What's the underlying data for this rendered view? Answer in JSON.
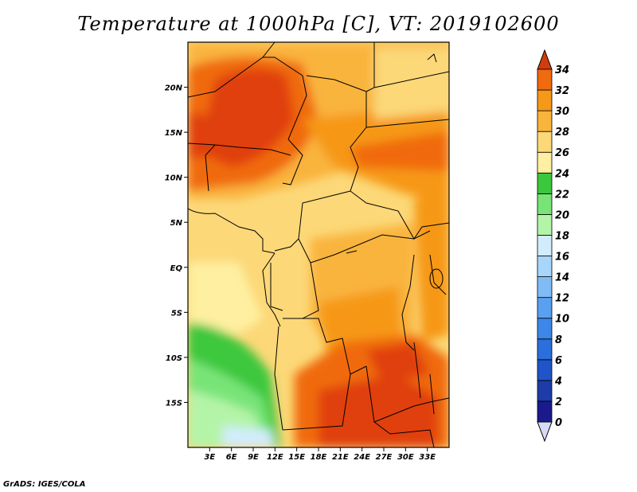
{
  "title": "Temperature at 1000hPa [C], VT: 2019102600",
  "credit": "GrADS: IGES/COLA",
  "map": {
    "lon_range": [
      0,
      36
    ],
    "lat_range": [
      -20,
      25
    ],
    "x_ticks": [
      {
        "value": 3,
        "label": "3E"
      },
      {
        "value": 6,
        "label": "6E"
      },
      {
        "value": 9,
        "label": "9E"
      },
      {
        "value": 12,
        "label": "12E"
      },
      {
        "value": 15,
        "label": "15E"
      },
      {
        "value": 18,
        "label": "18E"
      },
      {
        "value": 21,
        "label": "21E"
      },
      {
        "value": 24,
        "label": "24E"
      },
      {
        "value": 27,
        "label": "27E"
      },
      {
        "value": 30,
        "label": "30E"
      },
      {
        "value": 33,
        "label": "33E"
      }
    ],
    "y_ticks": [
      {
        "value": 20,
        "label": "20N"
      },
      {
        "value": 15,
        "label": "15N"
      },
      {
        "value": 10,
        "label": "10N"
      },
      {
        "value": 5,
        "label": "5N"
      },
      {
        "value": 0,
        "label": "EQ"
      },
      {
        "value": -5,
        "label": "5S"
      },
      {
        "value": -10,
        "label": "10S"
      },
      {
        "value": -15,
        "label": "15S"
      }
    ]
  },
  "colorbar": {
    "labels": [
      "0",
      "2",
      "4",
      "6",
      "8",
      "10",
      "12",
      "14",
      "16",
      "18",
      "20",
      "22",
      "24",
      "26",
      "28",
      "30",
      "32",
      "34"
    ],
    "bins": [
      {
        "lo": 0,
        "color": "#1a1a8c"
      },
      {
        "lo": 2,
        "color": "#1e3ca8"
      },
      {
        "lo": 4,
        "color": "#1f55c8"
      },
      {
        "lo": 6,
        "color": "#2a6fdc"
      },
      {
        "lo": 8,
        "color": "#3c87e8"
      },
      {
        "lo": 10,
        "color": "#5aa0f0"
      },
      {
        "lo": 12,
        "color": "#7fbcf6"
      },
      {
        "lo": 14,
        "color": "#a8d6fa"
      },
      {
        "lo": 16,
        "color": "#d2ecfd"
      },
      {
        "lo": 18,
        "color": "#b4f4a8"
      },
      {
        "lo": 20,
        "color": "#78e478"
      },
      {
        "lo": 22,
        "color": "#3cc83c"
      },
      {
        "lo": 24,
        "color": "#fef0a0"
      },
      {
        "lo": 26,
        "color": "#fcd878"
      },
      {
        "lo": 28,
        "color": "#f9b43c"
      },
      {
        "lo": 30,
        "color": "#f69818"
      },
      {
        "lo": 32,
        "color": "#f06a10"
      },
      {
        "lo": 34,
        "color": "#e04010"
      }
    ],
    "under_color": "#d8d8f8",
    "over_color": "#d23c0a"
  }
}
